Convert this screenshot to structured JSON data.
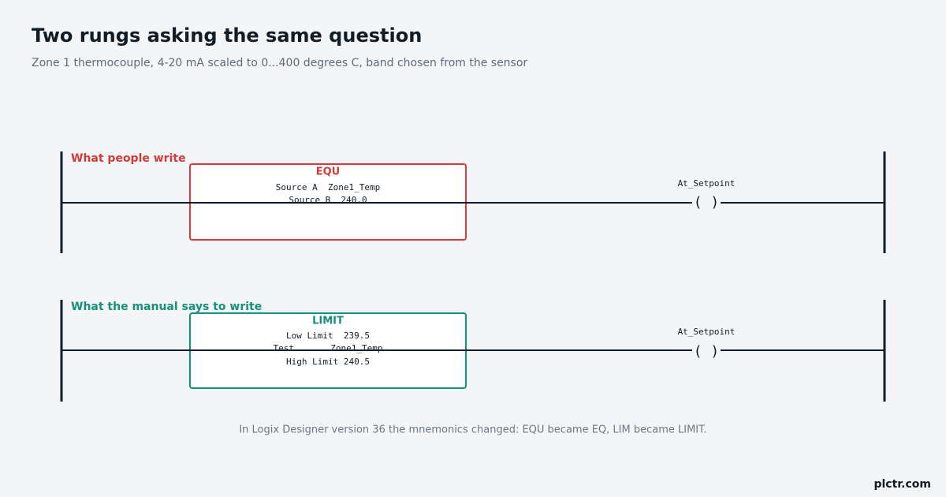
{
  "header": {
    "title": "Two rungs asking the same question",
    "subtitle": "Zone 1 thermocouple, 4-20 mA scaled to 0...400 degrees C, band chosen from the sensor"
  },
  "rungs": [
    {
      "label": "What people write",
      "instruction": "EQU",
      "parameters": [
        "Source A  Zone1_Temp",
        "Source B  240.0"
      ],
      "coil": {
        "tag": "At_Setpoint",
        "symbol": "( )"
      }
    },
    {
      "label": "What the manual says to write",
      "instruction": "LIMIT",
      "parameters": [
        "Low Limit  239.5",
        "Test       Zone1_Temp",
        "High Limit 240.5"
      ],
      "coil": {
        "tag": "At_Setpoint",
        "symbol": "( )"
      }
    }
  ],
  "footnote": "In Logix Designer version 36 the mnemonics changed: EQU became EQ, LIM became LIMIT.",
  "brand": "plctr.com"
}
